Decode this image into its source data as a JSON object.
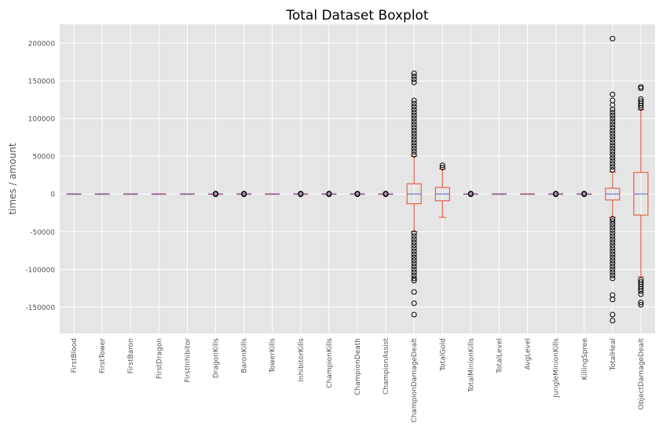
{
  "chart_data": {
    "type": "boxplot",
    "title": "Total Dataset Boxplot",
    "xlabel": "",
    "ylabel": "times / amount",
    "ylim": [
      -185000,
      225000
    ],
    "yticks": [
      -150000,
      -100000,
      -50000,
      0,
      50000,
      100000,
      150000,
      200000
    ],
    "grid": true,
    "colors": {
      "background": "#e5e5e5",
      "grid": "#ffffff",
      "box": "#e24a33",
      "median": "#5561c8",
      "outlier": "#000000",
      "tick_text": "#555555",
      "title_text": "#000000"
    },
    "categories": [
      "FirstBlood",
      "FirstTower",
      "FirstBaron",
      "FirstDragon",
      "FirstInhibitor",
      "DragonKills",
      "BaronKills",
      "TowerKills",
      "InhibitorKills",
      "ChampionKills",
      "ChampionDeath",
      "ChampionAssist",
      "ChampionDamageDealt",
      "TotalGold",
      "TotalMinionKills",
      "TotalLevel",
      "AvgLevel",
      "JungleMinionKills",
      "KillingSpree",
      "TotalHeal",
      "ObjectDamageDealt"
    ],
    "boxes": [
      {
        "q1": 0,
        "median": 0,
        "q3": 0,
        "whislo": 0,
        "whishi": 0,
        "outliers": []
      },
      {
        "q1": 0,
        "median": 0,
        "q3": 0,
        "whislo": 0,
        "whishi": 0,
        "outliers": []
      },
      {
        "q1": 0,
        "median": 0,
        "q3": 0,
        "whislo": 0,
        "whishi": 0,
        "outliers": []
      },
      {
        "q1": 0,
        "median": 0,
        "q3": 0,
        "whislo": 0,
        "whishi": 0,
        "outliers": []
      },
      {
        "q1": 0,
        "median": 0,
        "q3": 0,
        "whislo": 0,
        "whishi": 0,
        "outliers": []
      },
      {
        "q1": 0,
        "median": 0,
        "q3": 0,
        "whislo": 0,
        "whishi": 0,
        "outliers": [
          -500,
          500
        ]
      },
      {
        "q1": 0,
        "median": 0,
        "q3": 0,
        "whislo": 0,
        "whishi": 0,
        "outliers": [
          -500,
          500
        ]
      },
      {
        "q1": 0,
        "median": 0,
        "q3": 0,
        "whislo": 0,
        "whishi": 0,
        "outliers": []
      },
      {
        "q1": 0,
        "median": 0,
        "q3": 0,
        "whislo": 0,
        "whishi": 0,
        "outliers": [
          -500,
          500
        ]
      },
      {
        "q1": 0,
        "median": 0,
        "q3": 0,
        "whislo": 0,
        "whishi": 0,
        "outliers": [
          -500,
          500
        ]
      },
      {
        "q1": 0,
        "median": 0,
        "q3": 0,
        "whislo": 0,
        "whishi": 0,
        "outliers": [
          -500,
          500
        ]
      },
      {
        "q1": 0,
        "median": 0,
        "q3": 0,
        "whislo": 0,
        "whishi": 0,
        "outliers": [
          -500,
          500
        ]
      },
      {
        "q1": -13000,
        "median": 0,
        "q3": 13500,
        "whislo": -50000,
        "whishi": 50000,
        "outliers": [
          -160000,
          -145000,
          -130000,
          -115000,
          -112000,
          -108000,
          -104000,
          -100000,
          -96000,
          -92000,
          -88000,
          -84000,
          -80000,
          -76000,
          -72000,
          -68000,
          -64000,
          -60000,
          -56000,
          -52000,
          52000,
          56000,
          60000,
          64000,
          68000,
          72000,
          76000,
          80000,
          84000,
          88000,
          92000,
          96000,
          100000,
          104000,
          108000,
          112000,
          116000,
          120000,
          124000,
          148000,
          152000,
          156000,
          160000
        ]
      },
      {
        "q1": -9000,
        "median": 0,
        "q3": 8500,
        "whislo": -31000,
        "whishi": 33000,
        "outliers": [
          35000,
          38000
        ]
      },
      {
        "q1": 0,
        "median": 0,
        "q3": 0,
        "whislo": 0,
        "whishi": 0,
        "outliers": [
          -500,
          500
        ]
      },
      {
        "q1": 0,
        "median": 0,
        "q3": 0,
        "whislo": 0,
        "whishi": 0,
        "outliers": []
      },
      {
        "q1": 0,
        "median": 0,
        "q3": 0,
        "whislo": 0,
        "whishi": 0,
        "outliers": []
      },
      {
        "q1": 0,
        "median": 0,
        "q3": 0,
        "whislo": 0,
        "whishi": 0,
        "outliers": [
          -500,
          500
        ]
      },
      {
        "q1": 0,
        "median": 0,
        "q3": 0,
        "whislo": 0,
        "whishi": 0,
        "outliers": [
          -500,
          500
        ]
      },
      {
        "q1": -8000,
        "median": 0,
        "q3": 7500,
        "whislo": -31000,
        "whishi": 29000,
        "outliers": [
          -168000,
          -160000,
          -140000,
          -134000,
          -112000,
          -108000,
          -104000,
          -100000,
          -96000,
          -92000,
          -88000,
          -84000,
          -80000,
          -76000,
          -72000,
          -68000,
          -64000,
          -60000,
          -56000,
          -52000,
          -48000,
          -44000,
          -40000,
          -36000,
          -33000,
          32000,
          36000,
          40000,
          44000,
          48000,
          52000,
          56000,
          60000,
          64000,
          68000,
          72000,
          76000,
          80000,
          84000,
          88000,
          92000,
          96000,
          100000,
          104000,
          108000,
          112000,
          118000,
          124000,
          132000,
          206000
        ]
      },
      {
        "q1": -28000,
        "median": 0,
        "q3": 28500,
        "whislo": -110000,
        "whishi": 112000,
        "outliers": [
          -147000,
          -144000,
          -133000,
          -129000,
          -126000,
          -123000,
          -120000,
          -117000,
          -114000,
          114000,
          117000,
          120000,
          123000,
          126000,
          140000,
          142000
        ]
      }
    ]
  }
}
